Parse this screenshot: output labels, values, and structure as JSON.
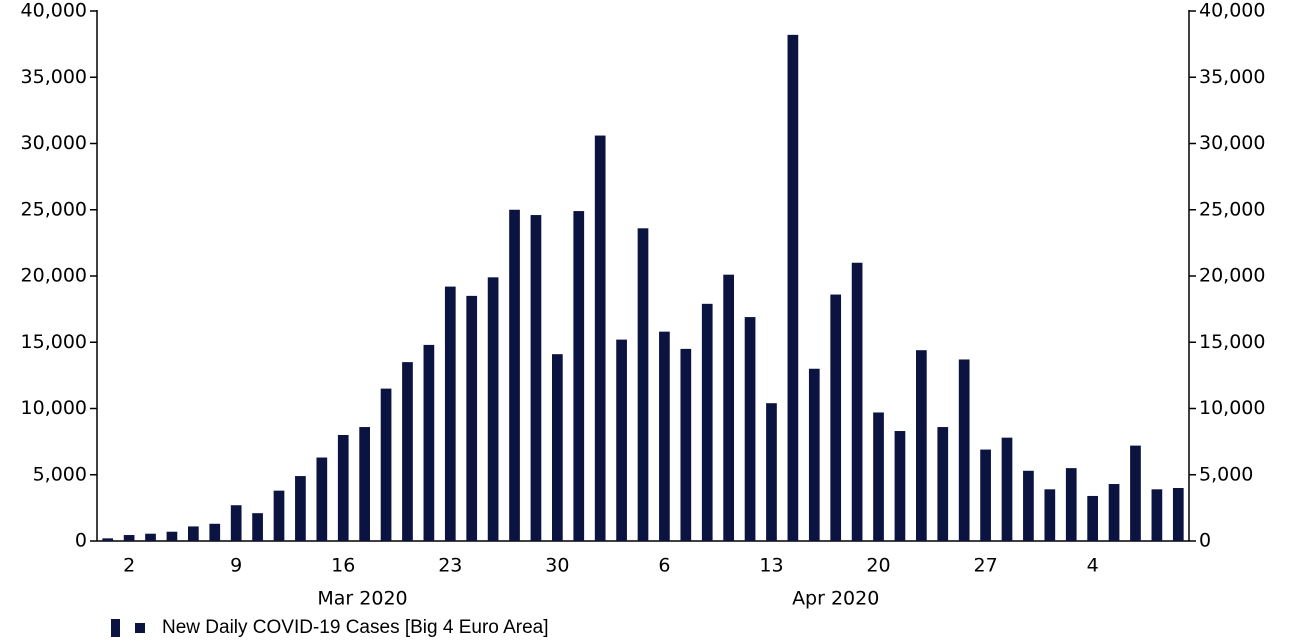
{
  "chart_data": {
    "type": "bar",
    "categories": [
      null,
      "2",
      null,
      null,
      null,
      null,
      "9",
      null,
      null,
      null,
      null,
      "16",
      null,
      null,
      null,
      null,
      "23",
      null,
      null,
      null,
      null,
      "30",
      null,
      null,
      null,
      null,
      "6",
      null,
      null,
      null,
      null,
      "13",
      null,
      null,
      null,
      null,
      "20",
      null,
      null,
      null,
      null,
      "27",
      null,
      null,
      null,
      null,
      "4",
      null,
      null,
      null,
      null
    ],
    "x_groups": [
      "Mar 2020",
      "Apr 2020"
    ],
    "series": [
      {
        "name": "New Daily COVID-19 Cases [Big 4 Euro Area]",
        "color": "#0b1341",
        "values": [
          200,
          450,
          550,
          700,
          1100,
          1300,
          2700,
          2100,
          3800,
          4900,
          6300,
          8000,
          8600,
          11500,
          13500,
          14800,
          19200,
          18500,
          19900,
          25000,
          24600,
          14100,
          24900,
          30600,
          15200,
          23600,
          15800,
          14500,
          17900,
          20100,
          16900,
          10400,
          38200,
          13000,
          18600,
          21000,
          9700,
          8300,
          14400,
          8600,
          13700,
          6900,
          7800,
          5300,
          3900,
          5500,
          3400,
          4300,
          7200,
          3900,
          4000
        ]
      }
    ],
    "ylim": [
      0,
      40000
    ],
    "yticks": [
      0,
      {
        "value": 5000,
        "label": "5,000"
      },
      {
        "value": 10000,
        "label": "10,000"
      },
      {
        "value": 15000,
        "label": "15,000"
      },
      {
        "value": 20000,
        "label": "20,000"
      },
      {
        "value": 25000,
        "label": "25,000"
      },
      {
        "value": 30000,
        "label": "30,000"
      },
      {
        "value": 35000,
        "label": "35,000"
      },
      {
        "value": 40000,
        "label": "40,000"
      }
    ],
    "y2lim": [
      0,
      40000
    ],
    "y2ticks": [
      0,
      {
        "value": 5000,
        "label": "5,000"
      },
      {
        "value": 10000,
        "label": "10,000"
      },
      {
        "value": 15000,
        "label": "15,000"
      },
      {
        "value": 20000,
        "label": "20,000"
      },
      {
        "value": 25000,
        "label": "25,000"
      },
      {
        "value": 30000,
        "label": "30,000"
      },
      {
        "value": 35000,
        "label": "35,000"
      },
      {
        "value": 40000,
        "label": "40,000"
      }
    ],
    "grid": false,
    "legend": "bottom-left"
  }
}
